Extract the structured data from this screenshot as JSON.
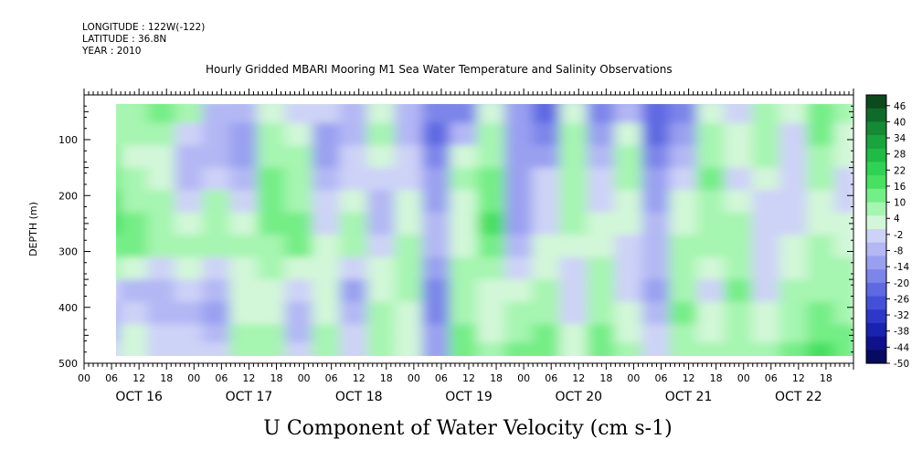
{
  "header": {
    "longitude": "LONGITUDE : 122W(-122)",
    "latitude": "LATITUDE : 36.8N",
    "year": "YEAR : 2010",
    "title": "Hourly Gridded MBARI Mooring M1 Sea Water Temperature and Salinity Observations"
  },
  "chart_data": {
    "type": "heatmap",
    "title": "Hourly Gridded MBARI Mooring M1 Sea Water Temperature and Salinity Observations",
    "xlabel": "U Component of Water Velocity (cm s-1)",
    "ylabel": "DEPTH (m)",
    "x_range_hours": [
      0,
      168
    ],
    "data_start_hour": 6,
    "ylim": [
      500,
      20
    ],
    "data_depth_range": [
      20,
      485
    ],
    "y_ticks": [
      "100",
      "200",
      "300",
      "400",
      "500"
    ],
    "x_hour_labels": [
      "00",
      "06",
      "12",
      "18"
    ],
    "x_day_labels": [
      "OCT 16",
      "OCT 17",
      "OCT 18",
      "OCT 19",
      "OCT 20",
      "OCT 21",
      "OCT 22"
    ],
    "colorbar": {
      "min": -50,
      "max": 50,
      "labels": [
        "46",
        "40",
        "34",
        "28",
        "22",
        "16",
        "10",
        "4",
        "-2",
        "-8",
        "-14",
        "-20",
        "-26",
        "-32",
        "-38",
        "-44",
        "-50"
      ],
      "colors": [
        "#0b4a1d",
        "#0f6b2a",
        "#148a34",
        "#19a53d",
        "#20bb45",
        "#2fd252",
        "#47e060",
        "#74ee86",
        "#a6f5b0",
        "#d2f7d8",
        "#cdd2f7",
        "#b3b7f4",
        "#9aa0f0",
        "#7d85ea",
        "#5f69e2",
        "#4450d8",
        "#2d37c8",
        "#1a22b0",
        "#0e128c",
        "#060a60"
      ]
    },
    "depths_m": [
      20,
      60,
      100,
      140,
      180,
      220,
      260,
      300,
      340,
      380,
      420,
      460,
      485
    ],
    "hours": [
      6,
      12,
      18,
      24,
      30,
      36,
      42,
      48,
      54,
      60,
      66,
      72,
      78,
      84,
      90,
      96,
      102,
      108,
      114,
      120,
      126,
      132,
      138,
      144,
      150,
      156,
      162,
      168
    ],
    "values": [
      [
        6,
        14,
        12,
        10,
        4,
        0,
        6,
        4,
        2,
        -2,
        8,
        0,
        -16,
        -14,
        -8,
        -12,
        -22,
        -14,
        -10,
        -12,
        -18,
        -12,
        -8,
        -4,
        6,
        4,
        10,
        6
      ],
      [
        8,
        10,
        14,
        6,
        -6,
        -8,
        4,
        -4,
        -4,
        -8,
        4,
        -8,
        -18,
        -16,
        2,
        -14,
        -24,
        4,
        -18,
        -6,
        -22,
        -16,
        4,
        0,
        8,
        2,
        12,
        8
      ],
      [
        10,
        6,
        8,
        -4,
        -8,
        -10,
        8,
        2,
        -10,
        -6,
        6,
        -6,
        -20,
        -8,
        6,
        -12,
        -18,
        6,
        -14,
        2,
        -20,
        -10,
        6,
        4,
        10,
        0,
        14,
        4
      ],
      [
        12,
        4,
        2,
        -8,
        -6,
        -12,
        10,
        6,
        -12,
        -4,
        2,
        -4,
        -18,
        2,
        8,
        -10,
        -10,
        8,
        -8,
        6,
        -16,
        -8,
        8,
        2,
        6,
        -2,
        10,
        2
      ],
      [
        14,
        6,
        4,
        -6,
        -2,
        -8,
        12,
        8,
        -8,
        0,
        -2,
        -2,
        -14,
        6,
        12,
        -12,
        -4,
        10,
        -4,
        8,
        -12,
        -2,
        12,
        0,
        2,
        -4,
        6,
        0
      ],
      [
        16,
        10,
        8,
        -2,
        6,
        -4,
        14,
        10,
        -4,
        4,
        -6,
        2,
        -10,
        4,
        14,
        -14,
        -2,
        8,
        0,
        4,
        -10,
        2,
        10,
        2,
        0,
        -2,
        4,
        -2
      ],
      [
        18,
        14,
        10,
        4,
        10,
        2,
        12,
        12,
        -2,
        8,
        -8,
        4,
        -6,
        2,
        16,
        -12,
        0,
        6,
        2,
        2,
        -8,
        4,
        8,
        6,
        -2,
        0,
        4,
        2
      ],
      [
        14,
        12,
        6,
        8,
        6,
        6,
        10,
        12,
        2,
        6,
        -4,
        6,
        -8,
        4,
        12,
        -8,
        2,
        2,
        4,
        0,
        -6,
        6,
        6,
        8,
        -4,
        2,
        6,
        4
      ],
      [
        6,
        4,
        -4,
        2,
        -2,
        4,
        6,
        4,
        4,
        -4,
        2,
        8,
        -14,
        6,
        8,
        -4,
        4,
        -2,
        6,
        -2,
        -8,
        8,
        2,
        10,
        -2,
        4,
        8,
        6
      ],
      [
        -4,
        -6,
        -8,
        -4,
        -8,
        2,
        2,
        -4,
        2,
        -10,
        4,
        6,
        -18,
        8,
        4,
        2,
        8,
        -4,
        8,
        0,
        -10,
        10,
        0,
        12,
        0,
        6,
        10,
        8
      ],
      [
        -8,
        -4,
        -6,
        -6,
        -10,
        4,
        4,
        -8,
        4,
        -8,
        6,
        4,
        -16,
        10,
        2,
        6,
        10,
        -2,
        10,
        2,
        -6,
        12,
        2,
        10,
        2,
        8,
        12,
        10
      ],
      [
        -6,
        2,
        -2,
        -2,
        -6,
        6,
        6,
        -6,
        6,
        -4,
        8,
        2,
        -12,
        12,
        4,
        10,
        12,
        2,
        12,
        4,
        -2,
        10,
        4,
        8,
        4,
        10,
        14,
        12
      ],
      [
        -2,
        4,
        0,
        0,
        -4,
        8,
        8,
        -4,
        8,
        -2,
        10,
        4,
        -10,
        12,
        6,
        12,
        14,
        4,
        12,
        6,
        0,
        8,
        6,
        6,
        6,
        12,
        16,
        14
      ]
    ]
  }
}
